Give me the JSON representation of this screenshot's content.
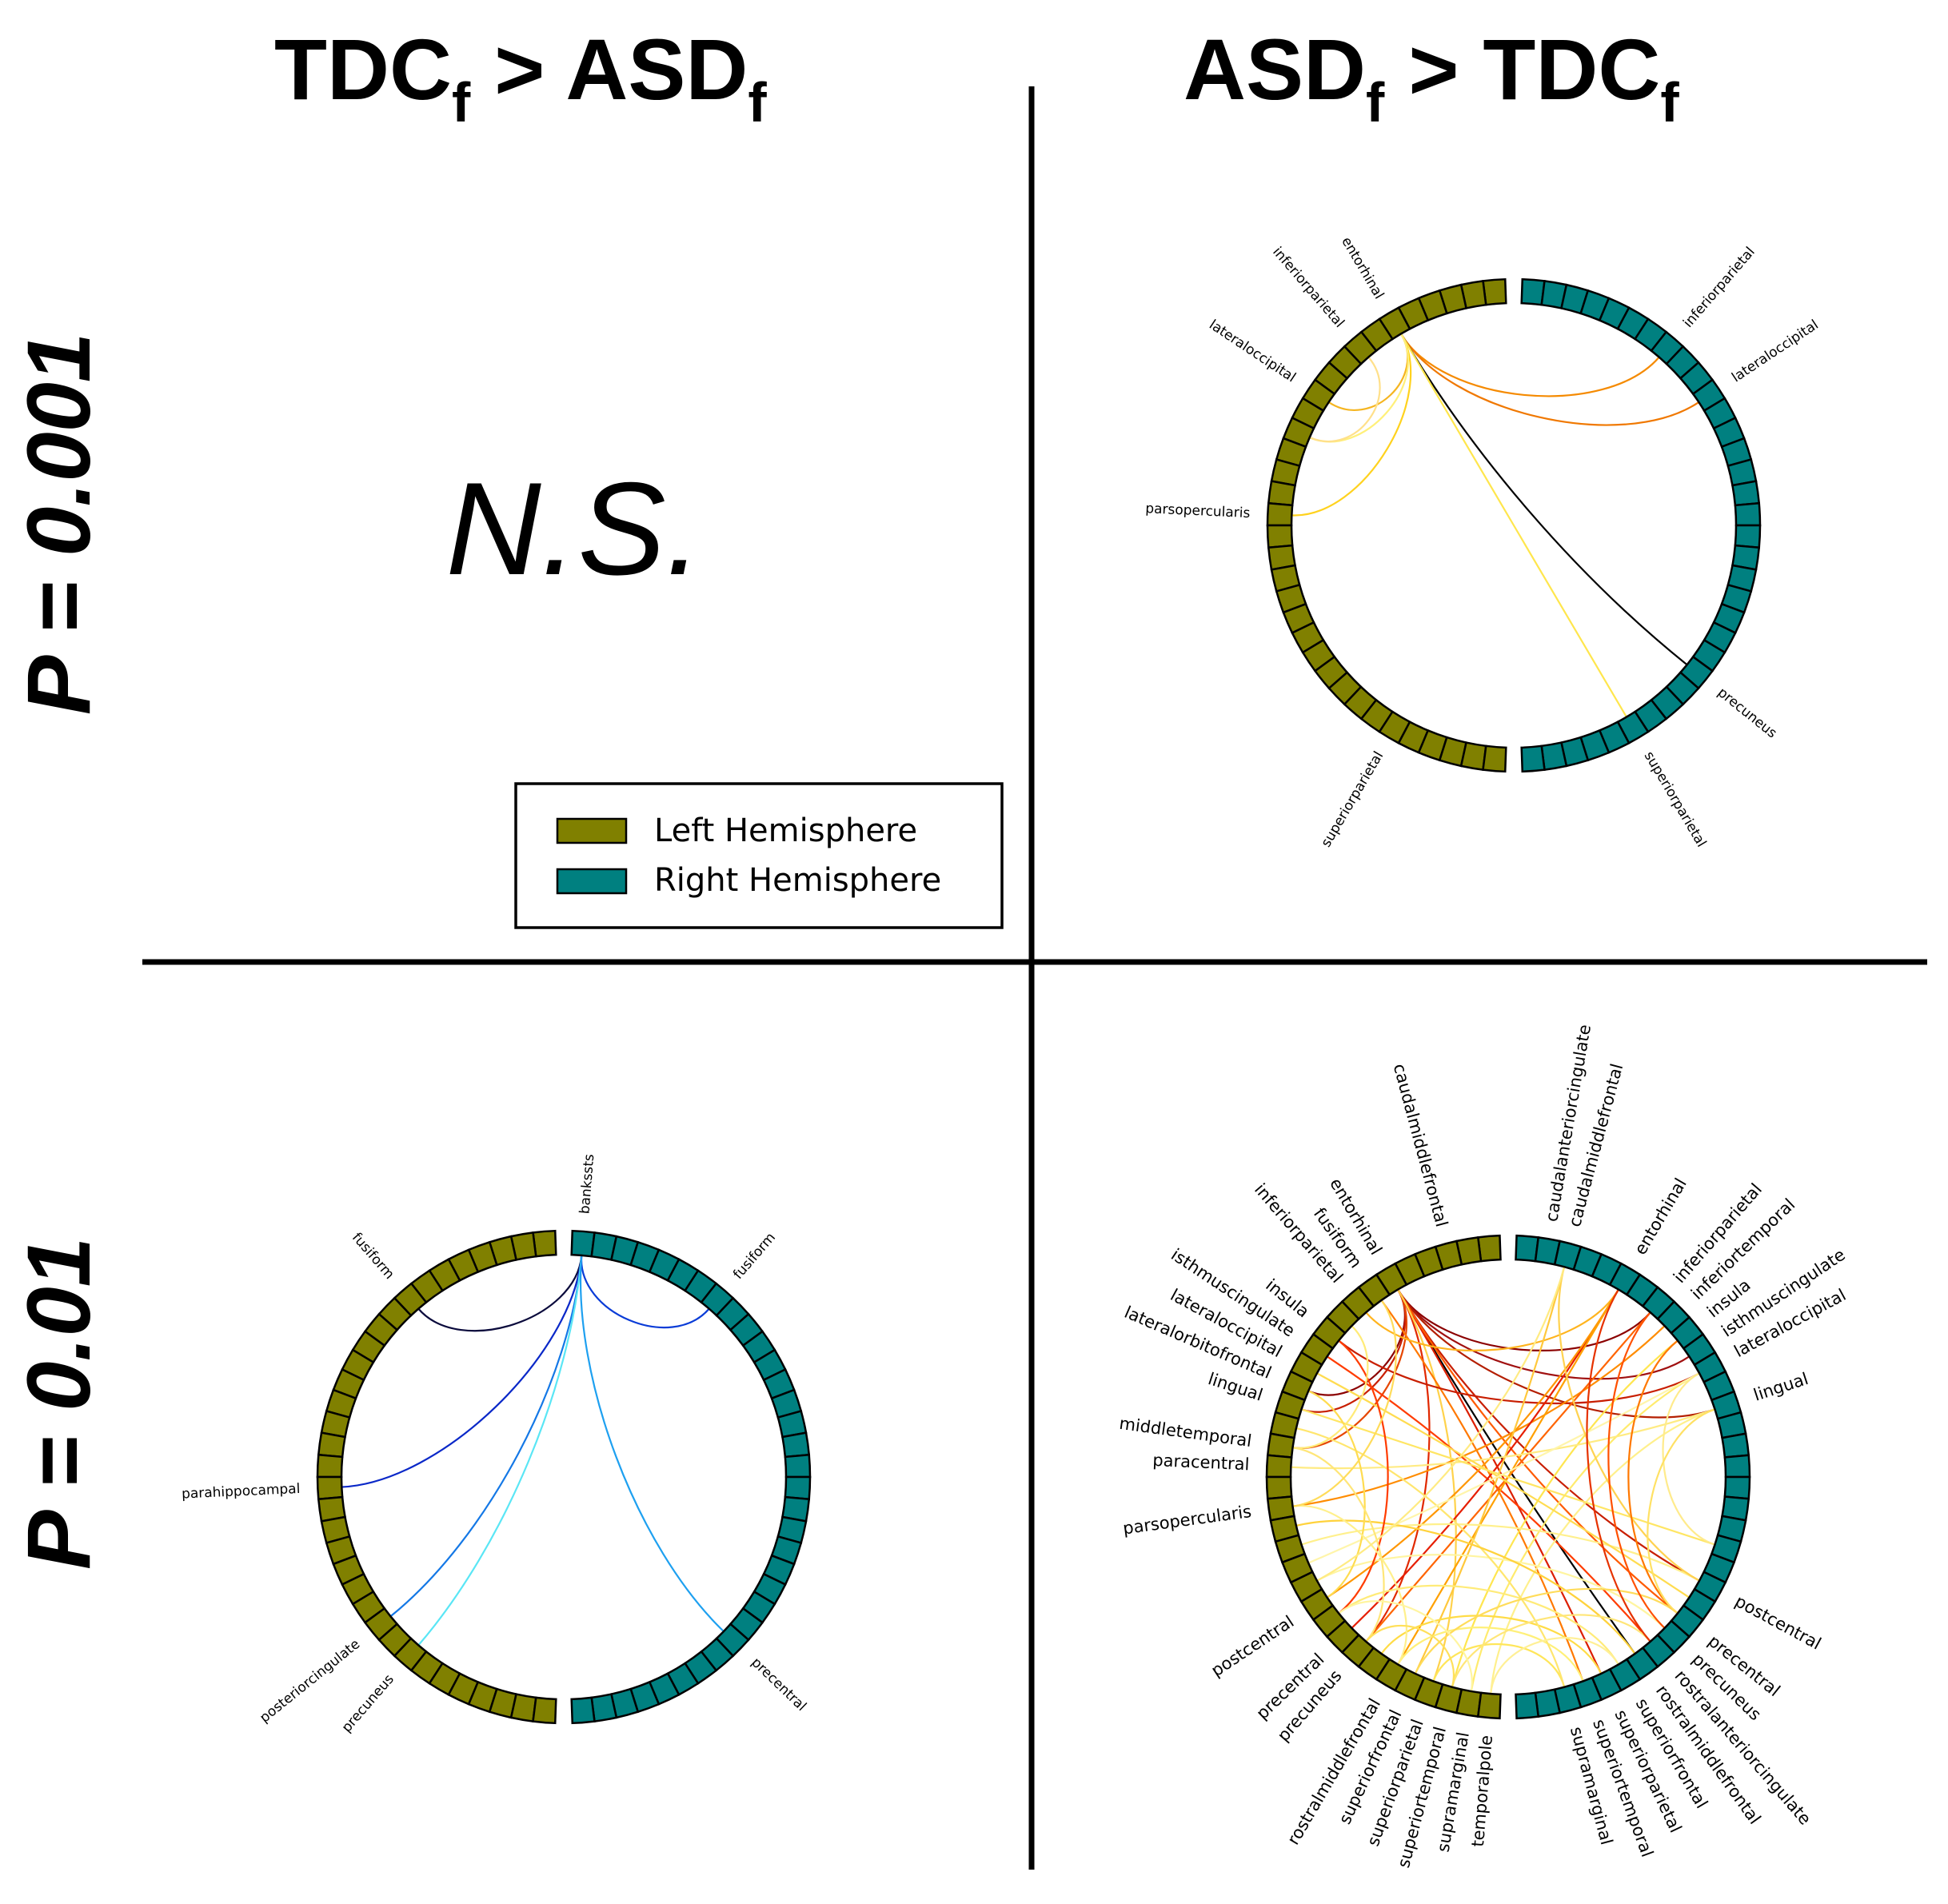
{
  "titles": {
    "col_left_main": "TDC",
    "col_left_sub1": "f",
    "col_left_mid": " > ASD",
    "col_left_sub2": "f",
    "col_right_main": "ASD",
    "col_right_sub1": "f",
    "col_right_mid": " > TDC",
    "col_right_sub2": "f",
    "row_top": "P = 0.001",
    "row_bottom": "P = 0.01"
  },
  "ns_label": "N.S.",
  "legend": {
    "items": [
      {
        "label": "Left Hemisphere",
        "color": "#808000"
      },
      {
        "label": "Right Hemisphere",
        "color": "#008080"
      }
    ]
  },
  "colors": {
    "left_hemisphere": "#808000",
    "right_hemisphere": "#008080"
  },
  "panels": [
    {
      "id": "top-right",
      "regions_per_hemisphere": 34,
      "labels": [
        {
          "text": "entorhinal",
          "hemi": "L",
          "idx": 5
        },
        {
          "text": "inferiorparietal",
          "hemi": "L",
          "idx": 7
        },
        {
          "text": "lateraloccipital",
          "hemi": "L",
          "idx": 10
        },
        {
          "text": "parsopercularis",
          "hemi": "L",
          "idx": 16
        },
        {
          "text": "superiorparietal",
          "hemi": "L",
          "idx": 28
        },
        {
          "text": "inferiorparietal",
          "hemi": "R",
          "idx": 7
        },
        {
          "text": "lateraloccipital",
          "hemi": "R",
          "idx": 10
        },
        {
          "text": "precuneus",
          "hemi": "R",
          "idx": 24
        },
        {
          "text": "superiorparietal",
          "hemi": "R",
          "idx": 28
        }
      ],
      "links": [
        {
          "a": [
            "L",
            5
          ],
          "b": [
            "R",
            7
          ],
          "color": "#f58a00"
        },
        {
          "a": [
            "L",
            5
          ],
          "b": [
            "R",
            10
          ],
          "color": "#f07800"
        },
        {
          "a": [
            "L",
            5
          ],
          "b": [
            "R",
            24
          ],
          "color": "#000000"
        },
        {
          "a": [
            "L",
            5
          ],
          "b": [
            "R",
            28
          ],
          "color": "#ffe64d"
        },
        {
          "a": [
            "L",
            5
          ],
          "b": [
            "L",
            10
          ],
          "color": "#f5b520"
        },
        {
          "a": [
            "L",
            5
          ],
          "b": [
            "L",
            16
          ],
          "color": "#ffd21e"
        },
        {
          "a": [
            "L",
            5
          ],
          "b": [
            "L",
            12
          ],
          "color": "#fff07a"
        },
        {
          "a": [
            "L",
            7
          ],
          "b": [
            "L",
            12
          ],
          "color": "#ffe08a"
        }
      ]
    },
    {
      "id": "bottom-left",
      "regions_per_hemisphere": 34,
      "labels": [
        {
          "text": "bankssts",
          "hemi": "R",
          "idx": 0
        },
        {
          "text": "fusiform",
          "hemi": "L",
          "idx": 7
        },
        {
          "text": "fusiform",
          "hemi": "R",
          "idx": 7
        },
        {
          "text": "parahippocampal",
          "hemi": "L",
          "idx": 17
        },
        {
          "text": "posteriorcingulate",
          "hemi": "L",
          "idx": 24
        },
        {
          "text": "precuneus",
          "hemi": "L",
          "idx": 26
        },
        {
          "text": "precentral",
          "hemi": "R",
          "idx": 25
        }
      ],
      "links": [
        {
          "a": [
            "R",
            0
          ],
          "b": [
            "L",
            7
          ],
          "color": "#0a0a3c"
        },
        {
          "a": [
            "R",
            0
          ],
          "b": [
            "R",
            7
          ],
          "color": "#0a3cd7"
        },
        {
          "a": [
            "R",
            0
          ],
          "b": [
            "L",
            17
          ],
          "color": "#0a28c8"
        },
        {
          "a": [
            "R",
            0
          ],
          "b": [
            "L",
            24
          ],
          "color": "#1478e6"
        },
        {
          "a": [
            "R",
            0
          ],
          "b": [
            "L",
            26
          ],
          "color": "#5ae6f5"
        },
        {
          "a": [
            "R",
            0
          ],
          "b": [
            "R",
            25
          ],
          "color": "#1ea0f0"
        }
      ]
    },
    {
      "id": "bottom-right",
      "regions_per_hemisphere": 34,
      "labels": [
        {
          "text": "caudalmiddlefrontal",
          "hemi": "L",
          "idx": 2
        },
        {
          "text": "entorhinal",
          "hemi": "L",
          "idx": 5
        },
        {
          "text": "fusiform",
          "hemi": "L",
          "idx": 6
        },
        {
          "text": "inferiorparietal",
          "hemi": "L",
          "idx": 7
        },
        {
          "text": "insula",
          "hemi": "L",
          "idx": 9
        },
        {
          "text": "isthmuscingulate",
          "hemi": "L",
          "idx": 10
        },
        {
          "text": "lateraloccipital",
          "hemi": "L",
          "idx": 11
        },
        {
          "text": "lateralorbitofrontal",
          "hemi": "L",
          "idx": 12
        },
        {
          "text": "lingual",
          "hemi": "L",
          "idx": 13
        },
        {
          "text": "middletemporal",
          "hemi": "L",
          "idx": 15
        },
        {
          "text": "paracentral",
          "hemi": "L",
          "idx": 16
        },
        {
          "text": "parsopercularis",
          "hemi": "L",
          "idx": 18
        },
        {
          "text": "postcentral",
          "hemi": "L",
          "idx": 23
        },
        {
          "text": "precentral",
          "hemi": "L",
          "idx": 25
        },
        {
          "text": "precuneus",
          "hemi": "L",
          "idx": 26
        },
        {
          "text": "rostralmiddlefrontal",
          "hemi": "L",
          "idx": 28
        },
        {
          "text": "superiorfrontal",
          "hemi": "L",
          "idx": 29
        },
        {
          "text": "superiorparietal",
          "hemi": "L",
          "idx": 30
        },
        {
          "text": "superiortemporal",
          "hemi": "L",
          "idx": 31
        },
        {
          "text": "supramarginal",
          "hemi": "L",
          "idx": 32
        },
        {
          "text": "temporalpole",
          "hemi": "L",
          "idx": 33
        },
        {
          "text": "caudalanteriorcingulate",
          "hemi": "R",
          "idx": 1
        },
        {
          "text": "caudalmiddlefrontal",
          "hemi": "R",
          "idx": 2
        },
        {
          "text": "entorhinal",
          "hemi": "R",
          "idx": 5
        },
        {
          "text": "inferiorparietal",
          "hemi": "R",
          "idx": 7
        },
        {
          "text": "inferiortemporal",
          "hemi": "R",
          "idx": 8
        },
        {
          "text": "insula",
          "hemi": "R",
          "idx": 9
        },
        {
          "text": "isthmuscingulate",
          "hemi": "R",
          "idx": 10
        },
        {
          "text": "lateraloccipital",
          "hemi": "R",
          "idx": 11
        },
        {
          "text": "lingual",
          "hemi": "R",
          "idx": 13
        },
        {
          "text": "postcentral",
          "hemi": "R",
          "idx": 22
        },
        {
          "text": "precentral",
          "hemi": "R",
          "idx": 24
        },
        {
          "text": "precuneus",
          "hemi": "R",
          "idx": 25
        },
        {
          "text": "rostralanteriorcingulate",
          "hemi": "R",
          "idx": 26
        },
        {
          "text": "rostralmiddlefrontal",
          "hemi": "R",
          "idx": 27
        },
        {
          "text": "superiorfrontal",
          "hemi": "R",
          "idx": 28
        },
        {
          "text": "superiorparietal",
          "hemi": "R",
          "idx": 29
        },
        {
          "text": "superiortemporal",
          "hemi": "R",
          "idx": 30
        },
        {
          "text": "supramarginal",
          "hemi": "R",
          "idx": 31
        }
      ],
      "links": [
        {
          "a": [
            "L",
            5
          ],
          "b": [
            "R",
            27
          ],
          "color": "#000000"
        },
        {
          "a": [
            "L",
            5
          ],
          "b": [
            "R",
            7
          ],
          "color": "#8b0000"
        },
        {
          "a": [
            "L",
            5
          ],
          "b": [
            "R",
            10
          ],
          "color": "#a01010"
        },
        {
          "a": [
            "L",
            5
          ],
          "b": [
            "R",
            13
          ],
          "color": "#b41e00"
        },
        {
          "a": [
            "L",
            5
          ],
          "b": [
            "R",
            22
          ],
          "color": "#c81e00"
        },
        {
          "a": [
            "L",
            5
          ],
          "b": [
            "L",
            12
          ],
          "color": "#8b0000"
        },
        {
          "a": [
            "L",
            5
          ],
          "b": [
            "L",
            13
          ],
          "color": "#c81e00"
        },
        {
          "a": [
            "L",
            5
          ],
          "b": [
            "L",
            15
          ],
          "color": "#e64600"
        },
        {
          "a": [
            "L",
            5
          ],
          "b": [
            "L",
            26
          ],
          "color": "#e12800"
        },
        {
          "a": [
            "L",
            5
          ],
          "b": [
            "R",
            29
          ],
          "color": "#dc1e00"
        },
        {
          "a": [
            "L",
            5
          ],
          "b": [
            "R",
            24
          ],
          "color": "#ff5a00"
        },
        {
          "a": [
            "L",
            5
          ],
          "b": [
            "L",
            30
          ],
          "color": "#ffd24b"
        },
        {
          "a": [
            "L",
            6
          ],
          "b": [
            "R",
            30
          ],
          "color": "#ff7800"
        },
        {
          "a": [
            "L",
            7
          ],
          "b": [
            "R",
            5
          ],
          "color": "#ffb41e"
        },
        {
          "a": [
            "L",
            9
          ],
          "b": [
            "R",
            11
          ],
          "color": "#c81e00"
        },
        {
          "a": [
            "L",
            10
          ],
          "b": [
            "R",
            26
          ],
          "color": "#ff3c00"
        },
        {
          "a": [
            "L",
            18
          ],
          "b": [
            "R",
            8
          ],
          "color": "#ff8c00"
        },
        {
          "a": [
            "L",
            25
          ],
          "b": [
            "R",
            5
          ],
          "color": "#e61e00"
        },
        {
          "a": [
            "L",
            26
          ],
          "b": [
            "R",
            7
          ],
          "color": "#ff6400"
        },
        {
          "a": [
            "L",
            23
          ],
          "b": [
            "R",
            5
          ],
          "color": "#ff9600"
        },
        {
          "a": [
            "L",
            28
          ],
          "b": [
            "R",
            5
          ],
          "color": "#ffa000"
        },
        {
          "a": [
            "L",
            29
          ],
          "b": [
            "R",
            2
          ],
          "color": "#ffc83c"
        },
        {
          "a": [
            "L",
            31
          ],
          "b": [
            "R",
            9
          ],
          "color": "#ffe650"
        },
        {
          "a": [
            "L",
            32
          ],
          "b": [
            "R",
            11
          ],
          "color": "#ffeb6e"
        },
        {
          "a": [
            "L",
            33
          ],
          "b": [
            "R",
            13
          ],
          "color": "#fff08c"
        },
        {
          "a": [
            "L",
            30
          ],
          "b": [
            "R",
            31
          ],
          "color": "#ffe65a"
        },
        {
          "a": [
            "L",
            28
          ],
          "b": [
            "R",
            30
          ],
          "color": "#fff078"
        },
        {
          "a": [
            "L",
            27
          ],
          "b": [
            "R",
            29
          ],
          "color": "#ffdc46"
        },
        {
          "a": [
            "L",
            24
          ],
          "b": [
            "R",
            28
          ],
          "color": "#ffeb78"
        },
        {
          "a": [
            "L",
            22
          ],
          "b": [
            "R",
            25
          ],
          "color": "#fff5a0"
        },
        {
          "a": [
            "L",
            20
          ],
          "b": [
            "R",
            22
          ],
          "color": "#fff08c"
        },
        {
          "a": [
            "L",
            14
          ],
          "b": [
            "R",
            31
          ],
          "color": "#ffe66e"
        },
        {
          "a": [
            "L",
            16
          ],
          "b": [
            "R",
            13
          ],
          "color": "#ffeb82"
        },
        {
          "a": [
            "L",
            11
          ],
          "b": [
            "R",
            23
          ],
          "color": "#ffdc50"
        },
        {
          "a": [
            "L",
            13
          ],
          "b": [
            "R",
            20
          ],
          "color": "#ffe664"
        },
        {
          "a": [
            "L",
            19
          ],
          "b": [
            "R",
            27
          ],
          "color": "#ffd23c"
        },
        {
          "a": [
            "L",
            21
          ],
          "b": [
            "R",
            11
          ],
          "color": "#fff5aa"
        },
        {
          "a": [
            "L",
            29
          ],
          "b": [
            "R",
            24
          ],
          "color": "#ffdc5a"
        },
        {
          "a": [
            "L",
            31
          ],
          "b": [
            "R",
            26
          ],
          "color": "#ffe678"
        },
        {
          "a": [
            "L",
            33
          ],
          "b": [
            "R",
            28
          ],
          "color": "#fff096"
        },
        {
          "a": [
            "R",
            2
          ],
          "b": [
            "R",
            22
          ],
          "color": "#ffd250"
        },
        {
          "a": [
            "R",
            7
          ],
          "b": [
            "R",
            25
          ],
          "color": "#ff5000"
        },
        {
          "a": [
            "R",
            5
          ],
          "b": [
            "R",
            26
          ],
          "color": "#e63200"
        },
        {
          "a": [
            "R",
            9
          ],
          "b": [
            "R",
            24
          ],
          "color": "#ff7800"
        },
        {
          "a": [
            "R",
            11
          ],
          "b": [
            "R",
            20
          ],
          "color": "#ffeb8c"
        },
        {
          "a": [
            "R",
            13
          ],
          "b": [
            "R",
            24
          ],
          "color": "#ffe164"
        },
        {
          "a": [
            "L",
            9
          ],
          "b": [
            "L",
            24
          ],
          "color": "#ff3c00"
        },
        {
          "a": [
            "L",
            12
          ],
          "b": [
            "L",
            23
          ],
          "color": "#ffdc50"
        },
        {
          "a": [
            "L",
            15
          ],
          "b": [
            "L",
            26
          ],
          "color": "#ffe678"
        },
        {
          "a": [
            "L",
            18
          ],
          "b": [
            "L",
            28
          ],
          "color": "#fff08c"
        },
        {
          "a": [
            "L",
            26
          ],
          "b": [
            "L",
            31
          ],
          "color": "#ffe05a"
        },
        {
          "a": [
            "L",
            24
          ],
          "b": [
            "L",
            32
          ],
          "color": "#fff5a0"
        },
        {
          "a": [
            "L",
            22
          ],
          "b": [
            "R",
            2
          ],
          "color": "#ffeb82"
        },
        {
          "a": [
            "L",
            8
          ],
          "b": [
            "L",
            15
          ],
          "color": "#ffeb78"
        },
        {
          "a": [
            "L",
            6
          ],
          "b": [
            "L",
            18
          ],
          "color": "#ffdc5a"
        }
      ]
    }
  ]
}
